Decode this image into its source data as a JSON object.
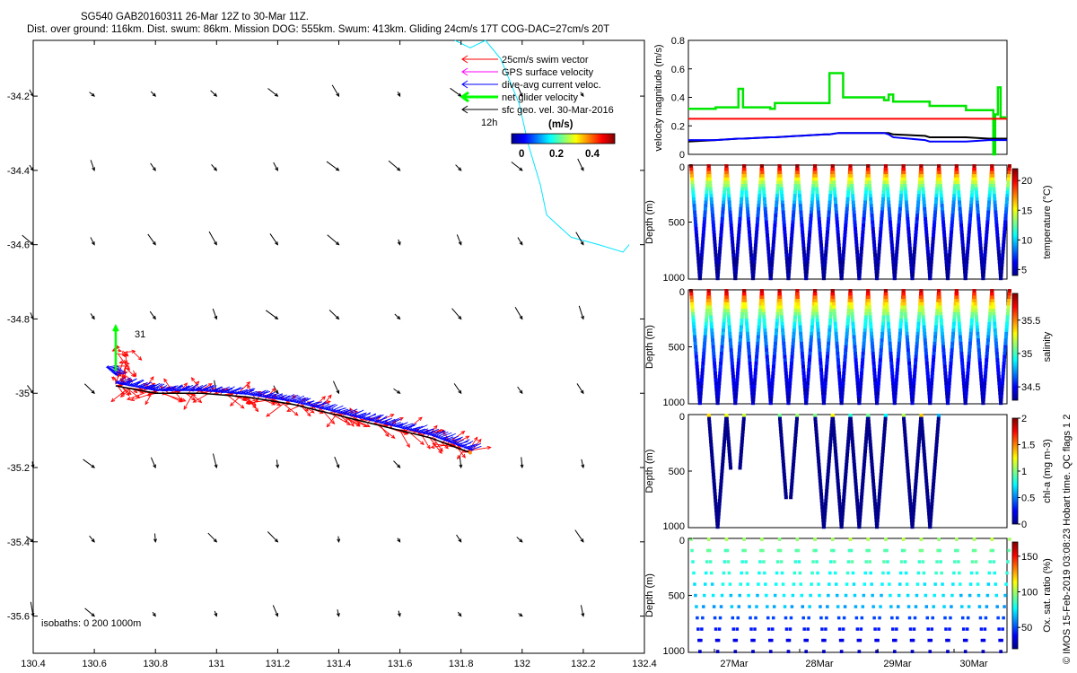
{
  "header": {
    "line1": "SG540 GAB20160311 26-Mar 12Z to 30-Mar 11Z.",
    "line2": "Dist. over ground: 116km. Dist. swum: 86km. Mission DOG: 555km. Swum: 413km. Gliding 24cm/s 17T COG-DAC=27cm/s 20T"
  },
  "credit": "© IMOS 15-Feb-2019 03:08:23 Hobart time. QC flags 1  2",
  "colors": {
    "swim": "#ff0000",
    "gps": "#ff00ff",
    "dac": "#0000ff",
    "net": "#00ff00",
    "surface": "#000000",
    "isobath": "#00e5ff"
  },
  "chart_data": [
    {
      "type": "map",
      "xlim": [
        130.4,
        132.4
      ],
      "ylim": [
        -35.7,
        -34.05
      ],
      "xticks": [
        "130.4",
        "130.6",
        "130.8",
        "131",
        "131.2",
        "131.4",
        "131.6",
        "131.8",
        "132",
        "132.2",
        "132.4"
      ],
      "yticks": [
        "-34.2",
        "-34.4",
        "-34.6",
        "-34.8",
        "-35",
        "-35.2",
        "-35.4",
        "-35.6"
      ],
      "legend": {
        "position": "top-right",
        "entries": [
          "25cm/s swim vector",
          "GPS surface velocity",
          "dive-avg current veloc.",
          "net glider velocity",
          "sfc geo. vel. 30-Mar-2016"
        ],
        "time_label": "12h"
      },
      "colorbar": {
        "label": "(m/s)",
        "ticks": [
          "0",
          "0.2",
          "0.4"
        ],
        "range": [
          0,
          0.5
        ]
      },
      "isobaths_label": "isobaths: 0   200  1000m",
      "dive_label": "31",
      "track": [
        [
          131.83,
          -35.16
        ],
        [
          131.7,
          -35.12
        ],
        [
          131.55,
          -35.09
        ],
        [
          131.4,
          -35.06
        ],
        [
          131.25,
          -35.03
        ],
        [
          131.1,
          -35.01
        ],
        [
          130.95,
          -35.0
        ],
        [
          130.8,
          -35.0
        ],
        [
          130.67,
          -34.98
        ]
      ],
      "isobath_line": [
        [
          131.78,
          -34.05
        ],
        [
          131.83,
          -34.07
        ],
        [
          131.88,
          -34.05
        ],
        [
          131.93,
          -34.1
        ],
        [
          131.99,
          -34.22
        ],
        [
          132.02,
          -34.33
        ],
        [
          132.06,
          -34.44
        ],
        [
          132.08,
          -34.52
        ],
        [
          132.16,
          -34.58
        ],
        [
          132.25,
          -34.6
        ],
        [
          132.33,
          -34.62
        ],
        [
          132.35,
          -34.6
        ]
      ]
    },
    {
      "type": "line",
      "ylabel": "velocity magnitude (m/s)",
      "ylim": [
        0,
        0.8
      ],
      "yticks": [
        "0",
        "0.2",
        "0.4",
        "0.6",
        "0.8"
      ],
      "x": [
        0,
        3,
        5.5,
        6,
        9,
        9.5,
        15,
        15.5,
        16.5,
        17,
        21.5,
        22,
        22.5,
        26,
        26.5,
        30,
        30.5,
        33,
        33.5,
        33.7,
        34,
        34.3,
        35
      ],
      "series": [
        {
          "color": "#00e600",
          "values": [
            0.32,
            0.33,
            0.46,
            0.33,
            0.32,
            0.36,
            0.36,
            0.57,
            0.57,
            0.4,
            0.38,
            0.42,
            0.37,
            0.37,
            0.34,
            0.34,
            0.31,
            0.31,
            0.0,
            0.28,
            0.47,
            0.26,
            0.26
          ]
        },
        {
          "color": "#ff0000",
          "values": [
            0.25,
            0.25,
            0.25,
            0.25,
            0.25,
            0.25,
            0.25,
            0.25,
            0.25,
            0.25,
            0.25,
            0.25,
            0.25,
            0.25,
            0.25,
            0.25,
            0.25,
            0.25,
            0.25,
            0.25,
            0.25,
            0.25,
            0.25
          ]
        },
        {
          "color": "#000000",
          "values": [
            0.09,
            0.1,
            0.11,
            0.11,
            0.12,
            0.12,
            0.14,
            0.14,
            0.15,
            0.15,
            0.15,
            0.15,
            0.14,
            0.13,
            0.12,
            0.12,
            0.12,
            0.11,
            0.11,
            0.11,
            0.11,
            0.11,
            0.11
          ]
        },
        {
          "color": "#0000ff",
          "values": [
            0.1,
            0.1,
            0.11,
            0.11,
            0.12,
            0.12,
            0.14,
            0.14,
            0.15,
            0.15,
            0.15,
            0.14,
            0.12,
            0.1,
            0.09,
            0.09,
            0.09,
            0.1,
            0.1,
            0.1,
            0.1,
            0.1,
            0.1
          ]
        }
      ]
    },
    {
      "type": "scatter",
      "ylabel": "Depth (m)",
      "cbar_label": "temperature (°C)",
      "yticks": [
        "0",
        "500",
        "1000"
      ],
      "ylim": [
        1000,
        0
      ],
      "crange": [
        4,
        22
      ],
      "cticks": [
        "5",
        "10",
        "15",
        "20"
      ]
    },
    {
      "type": "scatter",
      "ylabel": "Depth (m)",
      "cbar_label": "salinity",
      "yticks": [
        "0",
        "500",
        "1000"
      ],
      "ylim": [
        1000,
        0
      ],
      "crange": [
        34.3,
        35.9
      ],
      "cticks": [
        "34.5",
        "35",
        "35.5"
      ]
    },
    {
      "type": "scatter",
      "ylabel": "Depth (m)",
      "cbar_label": "chl-a (mg m-3)",
      "yticks": [
        "0",
        "500",
        "1000"
      ],
      "ylim": [
        1000,
        0
      ],
      "crange": [
        0,
        2
      ],
      "cticks": [
        "0",
        "0.5",
        "1",
        "1.5",
        "2"
      ]
    },
    {
      "type": "scatter",
      "ylabel": "Depth (m)",
      "cbar_label": "Ox. sat. ratio (%)",
      "yticks": [
        "0",
        "500",
        "1000"
      ],
      "ylim": [
        1000,
        0
      ],
      "crange": [
        20,
        170
      ],
      "cticks": [
        "50",
        "100",
        "150"
      ],
      "xticks": [
        "27Mar",
        "28Mar",
        "29Mar",
        "30Mar"
      ]
    }
  ]
}
